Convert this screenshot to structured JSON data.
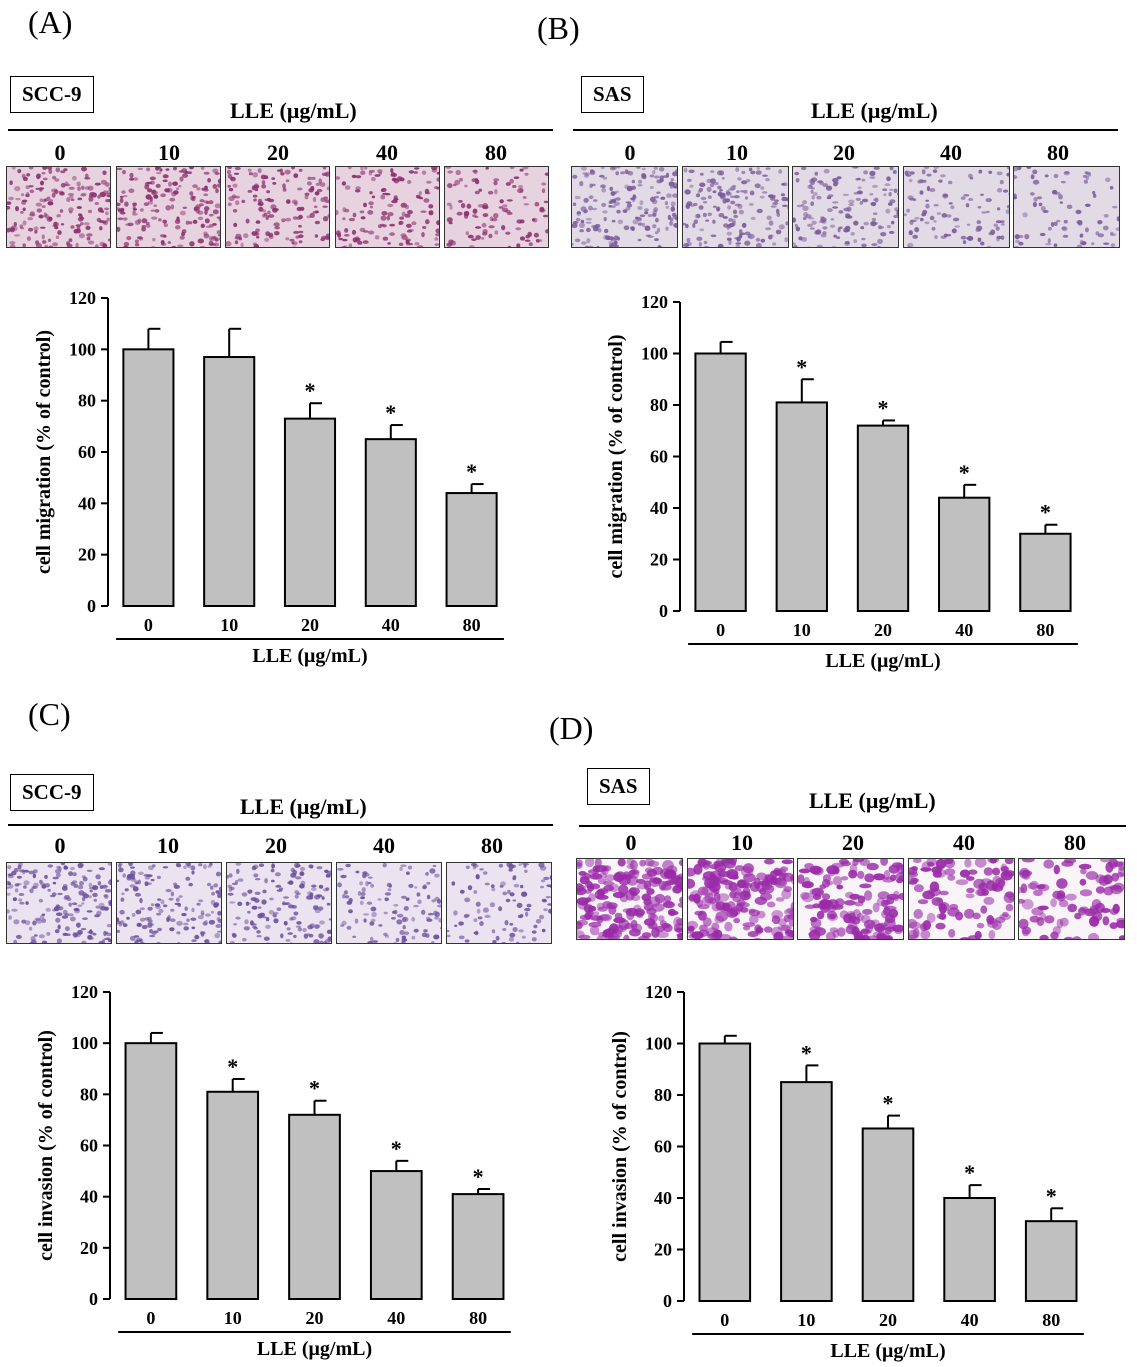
{
  "chart_data": [
    {
      "type": "bar",
      "panel": "(A)",
      "cell_line": "SCC-9",
      "header_label": "LLE (μg/mL)",
      "image_labels": [
        "0",
        "10",
        "20",
        "40",
        "80"
      ],
      "categories": [
        "0",
        "10",
        "20",
        "40",
        "80"
      ],
      "values": [
        100,
        97,
        73,
        65,
        44
      ],
      "errors": [
        8,
        11,
        6,
        5.5,
        3.5
      ],
      "significance": [
        "",
        "",
        "*",
        "*",
        "*"
      ],
      "ylabel": "cell migration (% of control)",
      "xlabel": "LLE (μg/mL)",
      "ylim": [
        0,
        120
      ],
      "yticks": [
        0,
        20,
        40,
        60,
        80,
        100,
        120
      ],
      "image_style": "pink"
    },
    {
      "type": "bar",
      "panel": "(B)",
      "cell_line": "SAS",
      "header_label": "LLE (μg/mL)",
      "image_labels": [
        "0",
        "10",
        "20",
        "40",
        "80"
      ],
      "categories": [
        "0",
        "10",
        "20",
        "40",
        "80"
      ],
      "values": [
        100,
        81,
        72,
        44,
        30
      ],
      "errors": [
        4.5,
        9,
        2,
        5,
        3.5
      ],
      "significance": [
        "",
        "*",
        "*",
        "*",
        "*"
      ],
      "ylabel": "cell migration (% of control)",
      "xlabel": "LLE (μg/mL)",
      "ylim": [
        0,
        120
      ],
      "yticks": [
        0,
        20,
        40,
        60,
        80,
        100,
        120
      ],
      "image_style": "lavender"
    },
    {
      "type": "bar",
      "panel": "(C)",
      "cell_line": "SCC-9",
      "header_label": "LLE (μg/mL)",
      "image_labels": [
        "0",
        "10",
        "20",
        "40",
        "80"
      ],
      "categories": [
        "0",
        "10",
        "20",
        "40",
        "80"
      ],
      "values": [
        100,
        81,
        72,
        50,
        41
      ],
      "errors": [
        4,
        5,
        5.5,
        4,
        2
      ],
      "significance": [
        "",
        "*",
        "*",
        "*",
        "*"
      ],
      "ylabel": "cell invasion (% of control)",
      "xlabel": "LLE (μg/mL)",
      "ylim": [
        0,
        120
      ],
      "yticks": [
        0,
        20,
        40,
        60,
        80,
        100,
        120
      ],
      "image_style": "violet"
    },
    {
      "type": "bar",
      "panel": "(D)",
      "cell_line": "SAS",
      "header_label": "LLE (μg/mL)",
      "image_labels": [
        "0",
        "10",
        "20",
        "40",
        "80"
      ],
      "categories": [
        "0",
        "10",
        "20",
        "40",
        "80"
      ],
      "values": [
        100,
        85,
        67,
        40,
        31
      ],
      "errors": [
        3,
        6.5,
        5,
        5,
        5
      ],
      "significance": [
        "",
        "*",
        "*",
        "*",
        "*"
      ],
      "ylabel": "cell invasion (% of control)",
      "xlabel": "LLE (μg/mL)",
      "ylim": [
        0,
        120
      ],
      "yticks": [
        0,
        20,
        40,
        60,
        80,
        100,
        120
      ],
      "image_style": "magenta"
    }
  ],
  "colors": {
    "bar_fill": "#c0c0c0",
    "bar_stroke": "#000000",
    "pink": [
      "#e7d2e0",
      "#8c2f6d"
    ],
    "lavender": [
      "#e2dbe6",
      "#7a5b9b"
    ],
    "violet": [
      "#ece3f0",
      "#6a4f9e"
    ],
    "magenta": [
      "#f8f4f8",
      "#9a2aa8"
    ]
  }
}
